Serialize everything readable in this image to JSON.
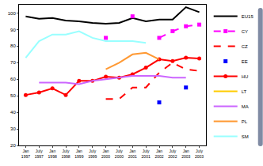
{
  "chart_data": {
    "type": "line",
    "categories": [
      "Jan 1997",
      "July 1997",
      "Jan 1998",
      "July 1998",
      "Jan 1999",
      "July 1999",
      "Jan 2000",
      "July 2000",
      "Jan 2001",
      "July 2001",
      "Jan 2002",
      "July 2002",
      "Jan 2003",
      "July 2003"
    ],
    "ylim": [
      20,
      105
    ],
    "yticks": [
      20,
      30,
      40,
      50,
      60,
      70,
      80,
      90,
      100
    ],
    "grid": false,
    "legend": "right",
    "series": [
      {
        "name": "EU15",
        "color": "#000000",
        "line_style": "solid",
        "marker": "none",
        "values": [
          98,
          96.5,
          97,
          95.5,
          95,
          94,
          93.5,
          94,
          97,
          95,
          96,
          96,
          103.5,
          100.5
        ]
      },
      {
        "name": "CY",
        "color": "#ff00ff",
        "line_style": "dashed",
        "marker": "square",
        "values": [
          null,
          null,
          null,
          null,
          null,
          null,
          85,
          null,
          98,
          null,
          85,
          89,
          92,
          93
        ]
      },
      {
        "name": "CZ",
        "color": "#ff0000",
        "line_style": "dashed",
        "marker": "none",
        "values": [
          null,
          null,
          null,
          null,
          null,
          null,
          48,
          48,
          55,
          55,
          64,
          70,
          66,
          65
        ]
      },
      {
        "name": "EE",
        "color": "#0000ff",
        "line_style": "none",
        "marker": "square",
        "values": [
          null,
          null,
          null,
          null,
          null,
          null,
          null,
          null,
          null,
          null,
          46,
          null,
          55,
          null
        ]
      },
      {
        "name": "HU",
        "color": "#ff0000",
        "line_style": "solid",
        "marker": "circle",
        "values": [
          50.5,
          52,
          54.5,
          50.5,
          59,
          59,
          61.5,
          61,
          63,
          67,
          72,
          71,
          73,
          72.5
        ]
      },
      {
        "name": "LT",
        "color": "#ffcc00",
        "line_style": "solid",
        "marker": "none",
        "values": [
          null,
          null,
          null,
          null,
          null,
          null,
          null,
          null,
          null,
          null,
          null,
          null,
          null,
          null
        ]
      },
      {
        "name": "MA",
        "color": "#cc66ff",
        "line_style": "solid",
        "marker": "none",
        "values": [
          null,
          58,
          58,
          58,
          57,
          59,
          60,
          61,
          62,
          62,
          62,
          61,
          61,
          null
        ]
      },
      {
        "name": "PL",
        "color": "#ff9933",
        "line_style": "solid",
        "marker": "none",
        "values": [
          null,
          null,
          null,
          null,
          null,
          null,
          66,
          70,
          75,
          76,
          72,
          null,
          null,
          null
        ]
      },
      {
        "name": "SM",
        "color": "#99ffff",
        "line_style": "solid",
        "marker": "none",
        "values": [
          73,
          83,
          87,
          87,
          89,
          85,
          83,
          83,
          83,
          82,
          null,
          null,
          null,
          null
        ]
      }
    ]
  }
}
